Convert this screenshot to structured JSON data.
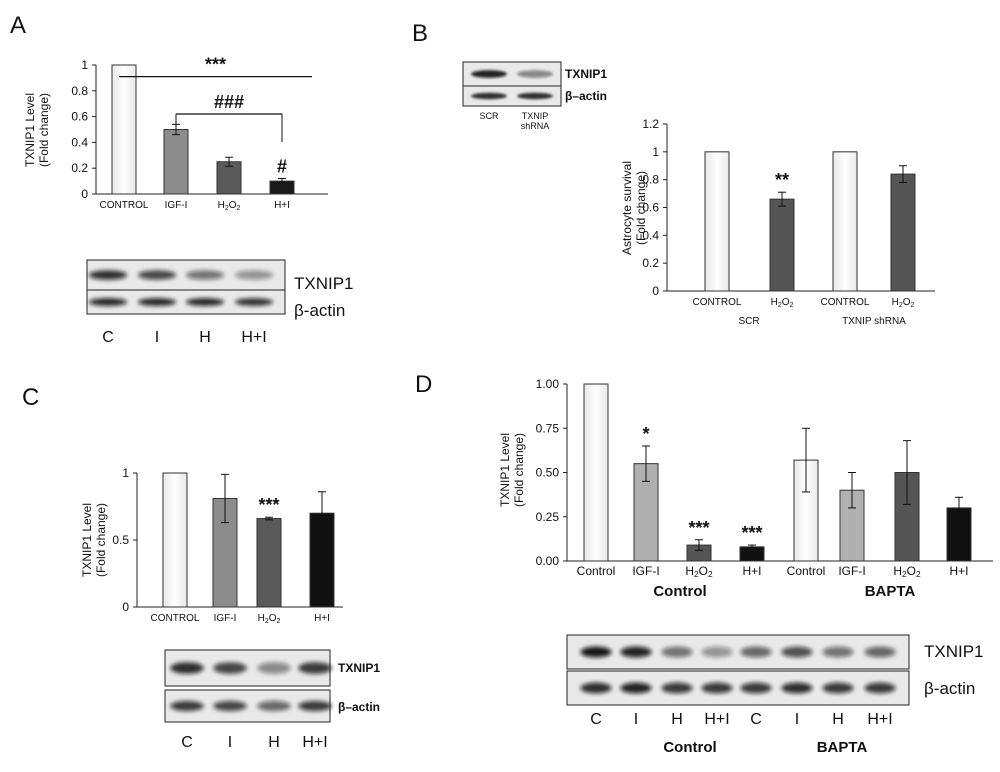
{
  "panels": {
    "A": {
      "letter": "A"
    },
    "B": {
      "letter": "B"
    },
    "C": {
      "letter": "C"
    },
    "D": {
      "letter": "D"
    }
  },
  "chart_data": [
    {
      "panel": "A",
      "type": "bar",
      "ylabel": "TXNIP1 Level\n(Fold change)",
      "ylim": [
        0,
        1
      ],
      "yticks": [
        "0",
        "0.2",
        "0.4",
        "0.6",
        "0.8",
        "1"
      ],
      "categories": [
        "CONTROL",
        "IGF-I",
        "H2O2",
        "H+I"
      ],
      "values": [
        1.0,
        0.5,
        0.25,
        0.1
      ],
      "errors": [
        0,
        0.04,
        0.035,
        0.02
      ],
      "fills": [
        "#ffffff",
        "#8c8c8c",
        "#5a5a5a",
        "#1a1a1a"
      ],
      "annotations": [
        {
          "text": "***",
          "from": 0,
          "to": 3,
          "y": 0.91
        },
        {
          "text": "###",
          "from": 1,
          "to": 3,
          "y": 0.62
        },
        {
          "text": "#",
          "at": 3
        }
      ]
    },
    {
      "panel": "B",
      "type": "bar",
      "ylabel": "Astrocyte survival\n(Fold change)",
      "ylim": [
        0,
        1.2
      ],
      "yticks": [
        "0",
        "0.2",
        "0.4",
        "0.6",
        "0.8",
        "1",
        "1.2"
      ],
      "categories": [
        "CONTROL",
        "H2O2",
        "CONTROL",
        "H2O2"
      ],
      "groups": [
        "SCR",
        "TXNIP shRNA"
      ],
      "values": [
        1.0,
        0.66,
        1.0,
        0.84
      ],
      "errors": [
        0,
        0.05,
        0,
        0.06
      ],
      "fills": [
        "#ffffff",
        "#555555",
        "#ffffff",
        "#555555"
      ],
      "annotations": [
        {
          "text": "**",
          "at": 1
        }
      ]
    },
    {
      "panel": "C",
      "type": "bar",
      "ylabel": "TXNIP1 Level\n(Fold change)",
      "ylim": [
        0,
        1
      ],
      "yticks": [
        "0",
        "0.5",
        "1"
      ],
      "categories": [
        "CONTROL",
        "IGF-I",
        "H2O2",
        "H+I"
      ],
      "values": [
        1.0,
        0.81,
        0.66,
        0.7
      ],
      "errors": [
        0,
        0.18,
        0.01,
        0.16
      ],
      "fills": [
        "#ffffff",
        "#8c8c8c",
        "#5a5a5a",
        "#111111"
      ],
      "annotations": [
        {
          "text": "***",
          "at": 2
        }
      ]
    },
    {
      "panel": "D",
      "type": "bar",
      "ylabel": "TXNIP1 Level\n(Fold change)",
      "ylim": [
        0,
        1
      ],
      "yticks": [
        "0.00",
        "0.25",
        "0.50",
        "0.75",
        "1.00"
      ],
      "categories": [
        "Control",
        "IGF-I",
        "H2O2",
        "H+I",
        "Control",
        "IGF-I",
        "H2O2",
        "H+I"
      ],
      "groups": [
        "Control",
        "BAPTA"
      ],
      "values": [
        1.0,
        0.55,
        0.09,
        0.08,
        0.57,
        0.4,
        0.5,
        0.3
      ],
      "errors": [
        0,
        0.1,
        0.03,
        0.01,
        0.18,
        0.1,
        0.18,
        0.06
      ],
      "fills": [
        "#ffffff",
        "#b0b0b0",
        "#555555",
        "#111111",
        "#ffffff",
        "#b0b0b0",
        "#555555",
        "#111111"
      ],
      "annotations": [
        {
          "text": "*",
          "at": 1
        },
        {
          "text": "***",
          "at": 2
        },
        {
          "text": "***",
          "at": 3
        }
      ]
    }
  ],
  "blots": {
    "A": {
      "bands": [
        "TXNIP1",
        "β-actin"
      ],
      "lanes": [
        "C",
        "I",
        "H",
        "H+I"
      ]
    },
    "B": {
      "bands": [
        "TXNIP1",
        "β–actin"
      ],
      "lanes": [
        "SCR",
        "TXNIP\nshRNA"
      ]
    },
    "C": {
      "bands": [
        "TXNIP1",
        "β–actin"
      ],
      "lanes": [
        "C",
        "I",
        "H",
        "H+I"
      ]
    },
    "D": {
      "bands": [
        "TXNIP1",
        "β-actin"
      ],
      "lanes": [
        "C",
        "I",
        "H",
        "H+I",
        "C",
        "I",
        "H",
        "H+I"
      ],
      "groups": [
        "Control",
        "BAPTA"
      ]
    }
  }
}
